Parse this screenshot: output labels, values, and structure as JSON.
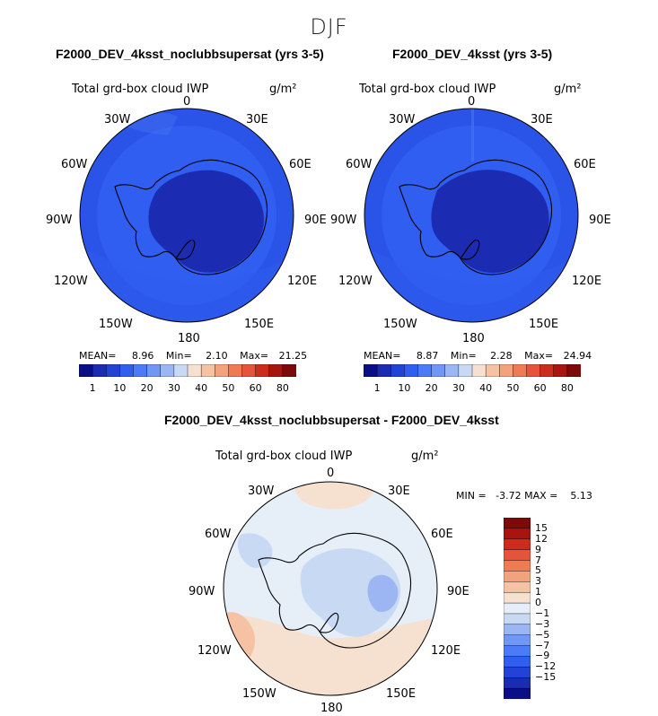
{
  "figure": {
    "season": "DJF"
  },
  "panels": [
    {
      "title": "F2000_DEV_4ksst_noclubbsupersat (yrs 3-5)",
      "variable": "Total grd-box cloud IWP",
      "units": "g/m²",
      "stats": {
        "mean_label": "MEAN=",
        "mean": "8.96",
        "min_label": "Min=",
        "min": "2.10",
        "max_label": "Max=",
        "max": "21.25"
      }
    },
    {
      "title": "F2000_DEV_4ksst (yrs 3-5)",
      "variable": "Total grd-box cloud IWP",
      "units": "g/m²",
      "stats": {
        "mean_label": "MEAN=",
        "mean": "8.87",
        "min_label": "Min=",
        "min": "2.28",
        "max_label": "Max=",
        "max": "24.94"
      }
    },
    {
      "title": "F2000_DEV_4ksst_noclubbsupersat - F2000_DEV_4ksst",
      "variable": "Total grd-box cloud IWP",
      "units": "g/m²",
      "stats": {
        "text": "MIN =   -3.72 MAX =    5.13"
      }
    }
  ],
  "map_labels": {
    "top": "0",
    "bottom": "180",
    "upper_left": "30W",
    "upper_right": "30E",
    "mid_upper_left": "60W",
    "mid_upper_right": "60E",
    "left": "90W",
    "right": "90E",
    "mid_lower_left": "120W",
    "mid_lower_right": "120E",
    "lower_left": "150W",
    "lower_right": "150E"
  },
  "abs_colorbar": {
    "colors": [
      "#0b0f86",
      "#1b2bb2",
      "#2243d6",
      "#2f5ef0",
      "#4b7bf6",
      "#7197f4",
      "#9bb6f2",
      "#c8d9f3",
      "#f6e0cf",
      "#f6c2a4",
      "#f3a27e",
      "#ef7b55",
      "#e6533a",
      "#cc2c1c",
      "#a8140f",
      "#7c0a08"
    ],
    "ticks": [
      "1",
      "10",
      "20",
      "30",
      "40",
      "50",
      "60",
      "80"
    ]
  },
  "diff_colorbar": {
    "colors": [
      "#7c0a08",
      "#a8140f",
      "#cc2c1c",
      "#e6533a",
      "#ef7b55",
      "#f3a27e",
      "#f6c2a4",
      "#f6e0cf",
      "#e6eef8",
      "#c8d9f3",
      "#9bb6f2",
      "#7197f4",
      "#4b7bf6",
      "#2f5ef0",
      "#2243d6",
      "#1b2bb2",
      "#0b0f86"
    ],
    "ticks": [
      "15",
      "12",
      "9",
      "7",
      "5",
      "3",
      "1",
      "0",
      "−1",
      "−3",
      "−5",
      "−7",
      "−9",
      "−12",
      "−15"
    ]
  },
  "colors": {
    "field_base": "#2f5ef0",
    "field_outer": "#2243d6",
    "field_inner": "#1b2bb2",
    "diff_base": "#e6eef8",
    "diff_pos": "#f6e0cf",
    "diff_neg": "#c8d9f3"
  }
}
